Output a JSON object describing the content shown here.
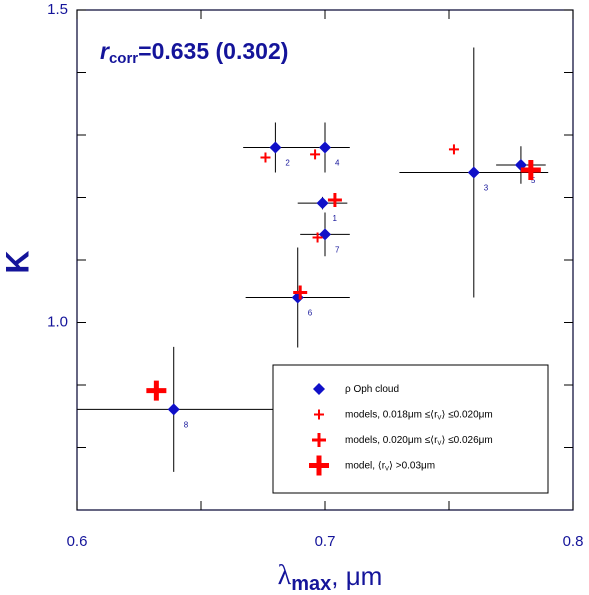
{
  "chart_data": {
    "type": "scatter",
    "annotation": {
      "r": "r",
      "sub": "corr",
      "rest": "=0.635 (0.302)"
    },
    "x_label": {
      "main": "λ",
      "sub": "max",
      "rest": ", μm"
    },
    "y_label": "K",
    "xlim": [
      0.6,
      0.8
    ],
    "xticks": [
      {
        "value": 0.6,
        "label": "0.6"
      },
      {
        "value": 0.7,
        "label": "0.7"
      },
      {
        "value": 0.8,
        "label": "0.8"
      }
    ],
    "xminor": [
      0.65,
      0.75
    ],
    "ylim": [
      0.7,
      1.5
    ],
    "yticks": [
      {
        "value": 1,
        "label": "1.0"
      },
      1.5
    ],
    "yminor": [
      0.8,
      0.9,
      1.1,
      1.2,
      1.3,
      1.4
    ],
    "series": [
      {
        "name": "ρ Oph cloud",
        "marker": "diamond",
        "color": "#1010c8",
        "x": [
          0.699,
          0.68,
          0.76,
          0.7,
          0.779,
          0.689,
          0.7,
          0.639
        ],
        "values": [
          1.191,
          1.28,
          1.24,
          1.28,
          1.252,
          1.04,
          1.141,
          0.861
        ],
        "xerr": [
          0.01,
          0.013,
          0.03,
          0.01,
          0.01,
          0.021,
          0.01,
          0.04
        ],
        "yerr": [
          0.01,
          0.04,
          0.2,
          0.04,
          0.03,
          0.08,
          0.035,
          0.1
        ],
        "point_labels": [
          "1",
          "2",
          "3",
          "4",
          "5",
          "6",
          "7",
          "8"
        ]
      },
      {
        "name": "models, 0.018μm ≤⟨r",
        "name_sub": "V",
        "name_end": "⟩ ≤0.020μm",
        "marker": "cross-small",
        "color": "#ff0000",
        "x": [
          0.676,
          0.696,
          0.697,
          0.752
        ],
        "values": [
          1.264,
          1.269,
          1.136,
          1.277
        ]
      },
      {
        "name": "models, 0.020μm ≤⟨r",
        "name_sub": "V",
        "name_end": "⟩ ≤0.026μm",
        "marker": "cross-medium",
        "color": "#ff0000",
        "x": [
          0.704,
          0.69
        ],
        "values": [
          1.196,
          1.048
        ]
      },
      {
        "name": "model, ⟨r",
        "name_sub": "V",
        "name_end": "⟩ >0.03μm",
        "marker": "cross-large",
        "color": "#ff0000",
        "x": [
          0.632,
          0.783
        ],
        "values": [
          0.891,
          1.244
        ]
      }
    ]
  }
}
